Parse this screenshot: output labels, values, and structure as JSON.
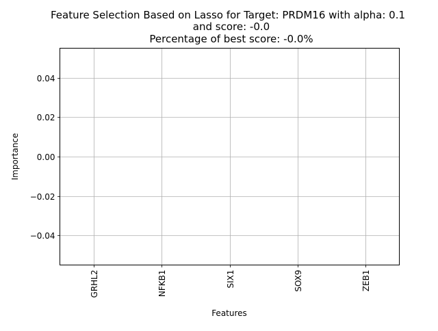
{
  "chart_data": {
    "type": "bar",
    "title_lines": [
      "Feature Selection Based on Lasso for Target: PRDM16 with alpha: 0.1",
      "and score: -0.0",
      "Percentage of best score: -0.0%"
    ],
    "xlabel": "Features",
    "ylabel": "Importance",
    "categories": [
      "GRHL2",
      "NFKB1",
      "SIX1",
      "SOX9",
      "ZEB1"
    ],
    "values": [
      0,
      0,
      0,
      0,
      0
    ],
    "ylim": [
      -0.055,
      0.055
    ],
    "yticks": [
      -0.04,
      -0.02,
      0.0,
      0.02,
      0.04
    ],
    "ytick_labels": [
      "−0.04",
      "−0.02",
      "0.00",
      "0.02",
      "0.04"
    ],
    "grid": true,
    "colors": {
      "bar": "#1f77b4",
      "grid": "#b0b0b0",
      "axes": "#000000"
    }
  }
}
